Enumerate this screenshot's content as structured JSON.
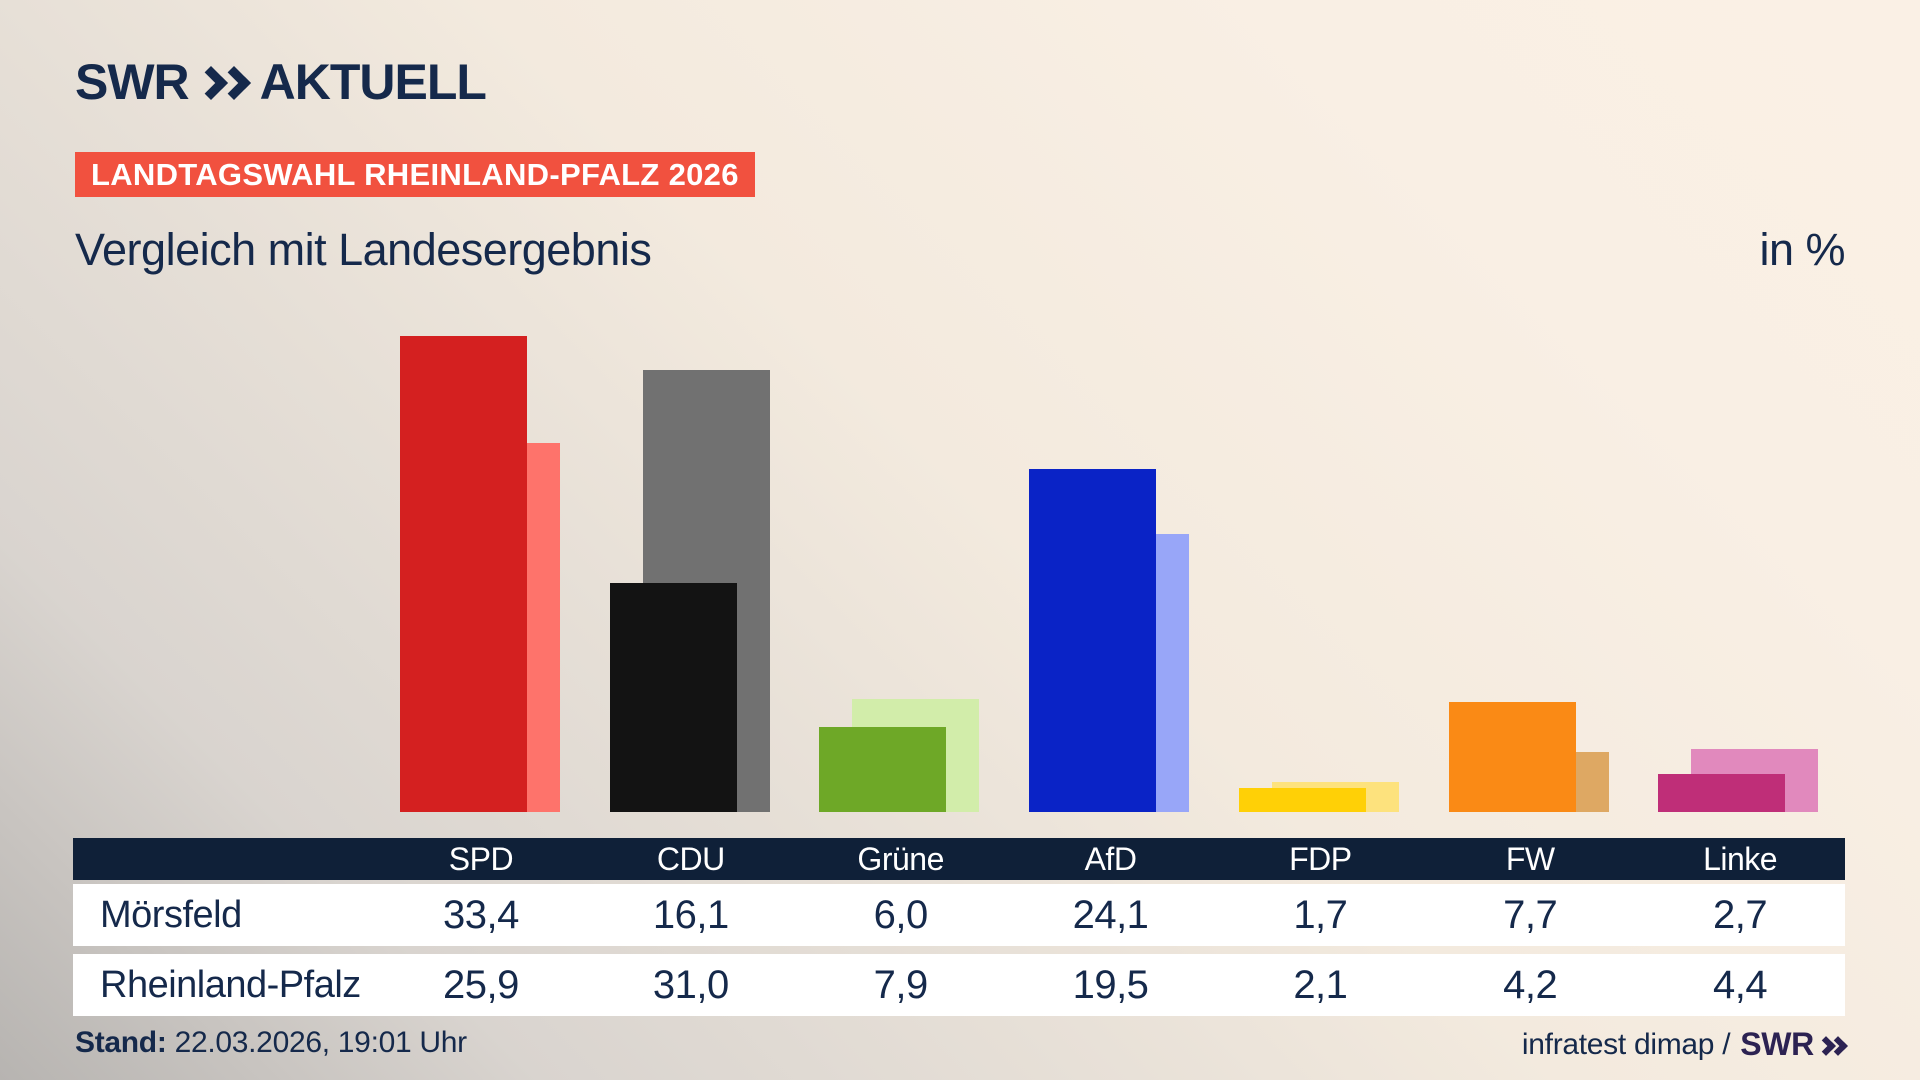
{
  "brand": {
    "logo_swr": "SWR",
    "logo_aktuell": "AKTUELL",
    "navy": "#15294b"
  },
  "badge": {
    "text": "LANDTAGSWAHL RHEINLAND-PFALZ 2026",
    "bg_color": "#f1513f"
  },
  "title": "Vergleich mit Landesergebnis",
  "unit_label": "in %",
  "chart_data": {
    "type": "bar",
    "title": "Vergleich mit Landesergebnis",
    "unit": "%",
    "categories": [
      "SPD",
      "CDU",
      "Grüne",
      "AfD",
      "FDP",
      "FW",
      "Linke"
    ],
    "series": [
      {
        "name": "Mörsfeld",
        "values": [
          33.4,
          16.1,
          6.0,
          24.1,
          1.7,
          7.7,
          2.7
        ],
        "colors": [
          "#d42020",
          "#131313",
          "#6ea827",
          "#0a23c6",
          "#ffd006",
          "#fa8a15",
          "#bf2e78"
        ]
      },
      {
        "name": "Rheinland-Pfalz",
        "values": [
          25.9,
          31.0,
          7.9,
          19.5,
          2.1,
          4.2,
          4.4
        ],
        "colors": [
          "#fe736b",
          "#717171",
          "#d2edaa",
          "#98a6f8",
          "#fde27d",
          "#dea863",
          "#e189bd"
        ]
      }
    ],
    "ylim": [
      0,
      35
    ],
    "grid": false,
    "legend_position": "table-rows-below"
  },
  "table": {
    "header": [
      "SPD",
      "CDU",
      "Grüne",
      "AfD",
      "FDP",
      "FW",
      "Linke"
    ],
    "header_bg": "#0f2038",
    "rows": [
      {
        "label": "Mörsfeld",
        "values": [
          "33,4",
          "16,1",
          "6,0",
          "24,1",
          "1,7",
          "7,7",
          "2,7"
        ]
      },
      {
        "label": "Rheinland-Pfalz",
        "values": [
          "25,9",
          "31,0",
          "7,9",
          "19,5",
          "2,1",
          "4,2",
          "4,4"
        ]
      }
    ]
  },
  "footer": {
    "stand_label": "Stand:",
    "stand_value": "22.03.2026, 19:01 Uhr",
    "source_text": "infratest dimap /",
    "source_brand": "SWR"
  }
}
